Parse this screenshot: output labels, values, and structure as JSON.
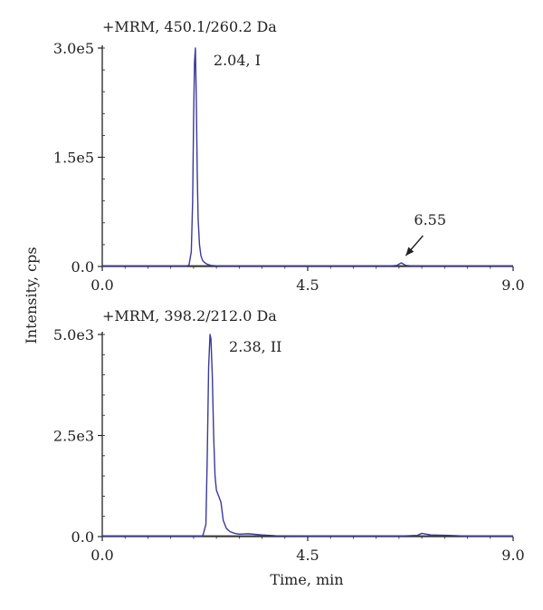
{
  "chart_data": {
    "type": "line",
    "ylabel": "Intensity, cps",
    "xlabel": "Time, min",
    "colors": {
      "trace": "#3a3a9a",
      "axis": "#222222",
      "baseline": "#222222"
    },
    "panels": [
      {
        "title": "+MRM, 450.1/260.2 Da",
        "xlim": [
          0.0,
          9.0
        ],
        "ylim": [
          0,
          300000
        ],
        "xticks": [
          "0.0",
          "4.5",
          "9.0"
        ],
        "xtick_values": [
          0.0,
          4.5,
          9.0
        ],
        "yticks": [
          "0.0",
          "1.5e5",
          "3.0e5"
        ],
        "ytick_values": [
          0,
          150000,
          300000
        ],
        "series": [
          {
            "x": [
              0.0,
              1.85,
              1.9,
              1.95,
              1.98,
              2.0,
              2.02,
              2.04,
              2.06,
              2.08,
              2.1,
              2.13,
              2.16,
              2.2,
              2.25,
              2.3,
              2.38,
              2.5,
              2.7,
              3.0,
              4.0,
              5.0,
              6.3,
              6.45,
              6.55,
              6.65,
              6.8,
              7.5,
              9.0
            ],
            "y": [
              0,
              0,
              2000,
              20000,
              90000,
              200000,
              280000,
              300000,
              230000,
              130000,
              65000,
              30000,
              15000,
              8000,
              5000,
              3000,
              1500,
              800,
              300,
              0,
              0,
              0,
              0,
              1500,
              5000,
              1500,
              0,
              0,
              0
            ]
          }
        ],
        "annotations": [
          {
            "text": "2.04, I",
            "x": 2.04,
            "y": 300000
          },
          {
            "text": "6.55",
            "x": 6.55,
            "y": 5000,
            "arrow": true
          }
        ]
      },
      {
        "title": "+MRM, 398.2/212.0 Da",
        "xlim": [
          0.0,
          9.0
        ],
        "ylim": [
          0,
          5000
        ],
        "xticks": [
          "0.0",
          "4.5",
          "9.0"
        ],
        "xtick_values": [
          0.0,
          4.5,
          9.0
        ],
        "yticks": [
          "0.0",
          "2.5e3",
          "5.0e3"
        ],
        "ytick_values": [
          0,
          2500,
          5000
        ],
        "series": [
          {
            "x": [
              0.0,
              2.2,
              2.27,
              2.3,
              2.33,
              2.36,
              2.38,
              2.41,
              2.44,
              2.47,
              2.5,
              2.55,
              2.6,
              2.65,
              2.72,
              2.8,
              2.9,
              3.0,
              3.2,
              3.5,
              3.8,
              4.5,
              6.5,
              6.9,
              7.0,
              7.2,
              7.6,
              8.0,
              9.0
            ],
            "y": [
              0,
              0,
              300,
              2000,
              4200,
              5000,
              4900,
              4000,
              2500,
              1500,
              1150,
              1000,
              850,
              400,
              200,
              120,
              80,
              60,
              70,
              40,
              20,
              0,
              0,
              30,
              80,
              40,
              30,
              10,
              0
            ]
          }
        ],
        "annotations": [
          {
            "text": "2.38, II",
            "x": 2.38,
            "y": 5000
          }
        ]
      }
    ]
  }
}
